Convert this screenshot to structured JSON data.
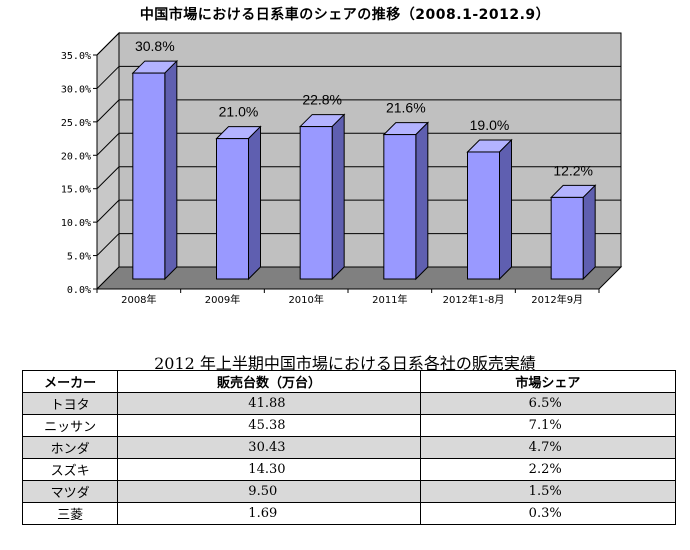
{
  "chart_data": {
    "type": "bar",
    "title": "中国市場における日系車のシェアの推移（2008.1-2012.9）",
    "categories": [
      "2008年",
      "2009年",
      "2010年",
      "2011年",
      "2012年1-8月",
      "2012年9月"
    ],
    "values": [
      30.8,
      21.0,
      22.8,
      21.6,
      19.0,
      12.2
    ],
    "value_labels": [
      "30.8%",
      "21.0%",
      "22.8%",
      "21.6%",
      "19.0%",
      "12.2%"
    ],
    "y_ticks": [
      "0.0%",
      "5.0%",
      "10.0%",
      "15.0%",
      "20.0%",
      "25.0%",
      "30.0%",
      "35.0%"
    ],
    "ylim": [
      0,
      35
    ],
    "grid": true,
    "legend": "none",
    "colors": {
      "bar_front": "#9999ff",
      "bar_top": "#b3b3ff",
      "bar_side": "#5f5fb0",
      "wall": "#c0c0c0",
      "floor": "#808080"
    }
  },
  "table": {
    "title": "2012 年上半期中国市場における日系各社の販売実績",
    "headers": [
      "メーカー",
      "販売台数（万台）",
      "市場シェア"
    ],
    "rows": [
      [
        "トヨタ",
        "41.88",
        "6.5%"
      ],
      [
        "ニッサン",
        "45.38",
        "7.1%"
      ],
      [
        "ホンダ",
        "30.43",
        "4.7%"
      ],
      [
        "スズキ",
        "14.30",
        "2.2%"
      ],
      [
        "マツダ",
        "9.50",
        "1.5%"
      ],
      [
        "三菱",
        "1.69",
        "0.3%"
      ]
    ]
  }
}
